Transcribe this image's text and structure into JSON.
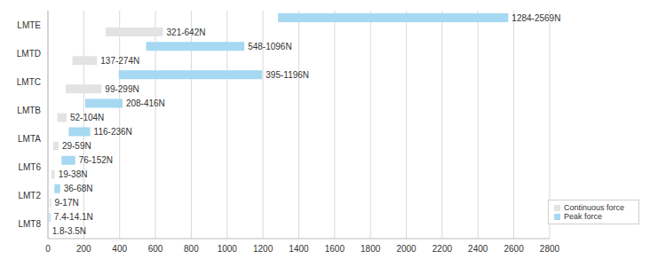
{
  "chart_data": {
    "type": "bar",
    "orientation": "horizontal",
    "categories": [
      "LMTE",
      "LMTD",
      "LMTC",
      "LMTB",
      "LMTA",
      "LMT6",
      "LMT2",
      "LMT8"
    ],
    "series": [
      {
        "name": "Peak force",
        "color": "#a6d8f2",
        "values": [
          [
            1284,
            2569
          ],
          [
            548,
            1096
          ],
          [
            395,
            1196
          ],
          [
            208,
            416
          ],
          [
            116,
            236
          ],
          [
            76,
            152
          ],
          [
            36,
            68
          ],
          [
            7.4,
            14.1
          ]
        ],
        "value_labels": [
          "1284-2569N",
          "548-1096N",
          "395-1196N",
          "208-416N",
          "116-236N",
          "76-152N",
          "36-68N",
          "7.4-14.1N"
        ]
      },
      {
        "name": "Continuous force",
        "color": "#e3e3e3",
        "values": [
          [
            321,
            642
          ],
          [
            137,
            274
          ],
          [
            99,
            299
          ],
          [
            52,
            104
          ],
          [
            29,
            59
          ],
          [
            19,
            38
          ],
          [
            9,
            17
          ],
          [
            1.8,
            3.5
          ]
        ],
        "value_labels": [
          "321-642N",
          "137-274N",
          "99-299N",
          "52-104N",
          "29-59N",
          "19-38N",
          "9-17N",
          "1.8-3.5N"
        ]
      }
    ],
    "xlim": [
      0,
      2800
    ],
    "xticks": [
      0,
      200,
      400,
      600,
      800,
      1000,
      1200,
      1400,
      1600,
      1800,
      2000,
      2200,
      2400,
      2600,
      2800
    ],
    "grid": true,
    "legend": "lower right",
    "data_labels": true
  }
}
